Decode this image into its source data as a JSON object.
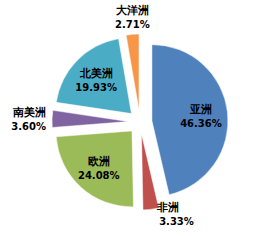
{
  "chart_data": {
    "type": "pie",
    "categories": [
      "亚洲",
      "非洲",
      "欧洲",
      "南美洲",
      "北美洲",
      "大洋洲"
    ],
    "values": [
      46.36,
      3.33,
      24.08,
      3.6,
      19.93,
      2.71
    ],
    "value_labels": [
      "46.36%",
      "3.33%",
      "24.08%",
      "3.60%",
      "19.93%",
      "2.71%"
    ],
    "colors": [
      "#4f81bd",
      "#c0504d",
      "#9bbb59",
      "#8064a2",
      "#4bacc6",
      "#f79646"
    ],
    "data_labels": true
  }
}
